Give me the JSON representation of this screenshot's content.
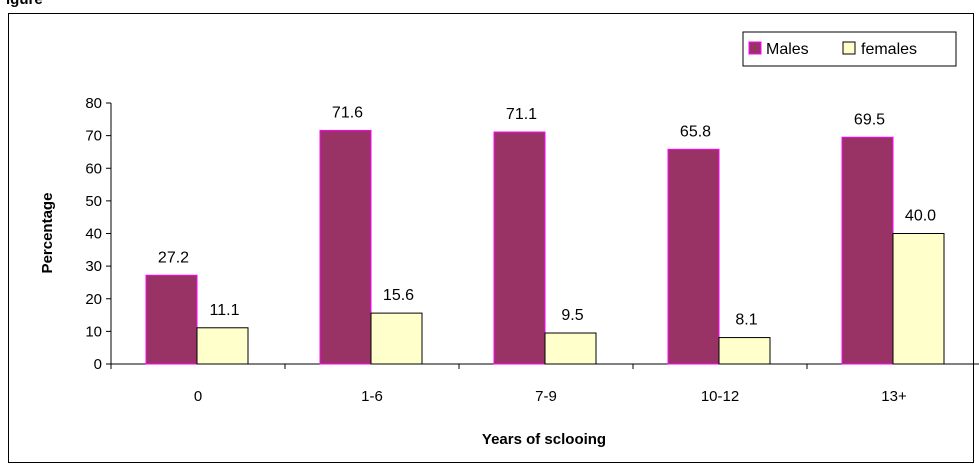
{
  "figure_caption": "igure",
  "chart_data": {
    "type": "bar",
    "categories": [
      "0",
      "1-6",
      "7-9",
      "10-12",
      "13+"
    ],
    "series": [
      {
        "name": "Males",
        "values": [
          27.2,
          71.6,
          71.1,
          65.8,
          69.5
        ],
        "color": "#993366",
        "stroke": "#FF00FF"
      },
      {
        "name": "females",
        "values": [
          11.1,
          15.6,
          9.5,
          8.1,
          40.0
        ],
        "color": "#FFFFCC",
        "stroke": "#000000"
      }
    ],
    "data_labels": [
      [
        "27.2",
        "71.6",
        "71.1",
        "65.8",
        "69.5"
      ],
      [
        "11.1",
        "15.6",
        "9.5",
        "8.1",
        "40.0"
      ]
    ],
    "y_ticks": [
      "0",
      "10",
      "20",
      "30",
      "40",
      "50",
      "60",
      "70",
      "80"
    ],
    "ylim": [
      0,
      80
    ],
    "xlabel": "Years of sclooing",
    "ylabel": "Percentage",
    "legend_position": "top-right",
    "grid": false
  }
}
